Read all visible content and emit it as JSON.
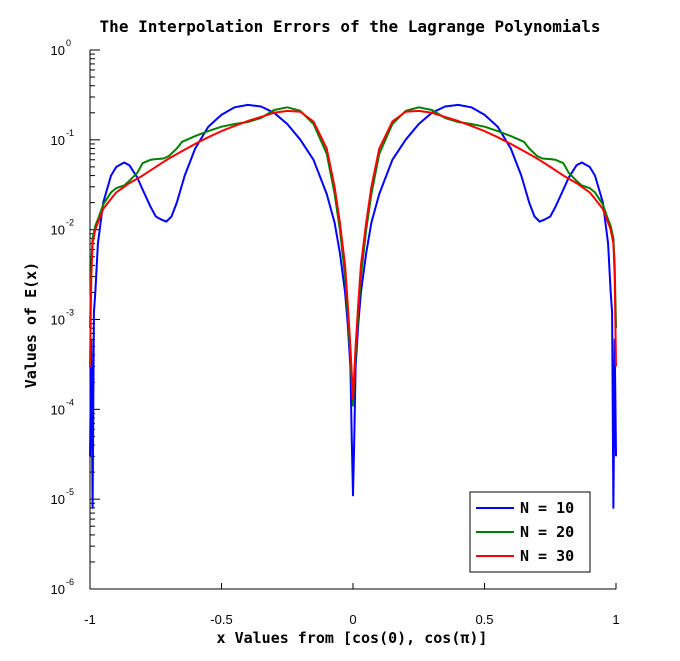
{
  "chart_data": {
    "type": "line",
    "title": "The Interpolation Errors of the Lagrange Polynomials",
    "xlabel": "x Values from [cos(0), cos(π)]",
    "ylabel": "Values of E(x)",
    "xlim": [
      -1,
      1
    ],
    "ylim": [
      1e-06,
      1
    ],
    "yscale": "log",
    "grid": false,
    "legend_position": "bottom-right",
    "x_ticks": [
      "-1",
      "-0.5",
      "0",
      "0.5",
      "1"
    ],
    "x_tick_values": [
      -1,
      -0.5,
      0,
      0.5,
      1
    ],
    "y_ticks": [
      {
        "base": "10",
        "exp": "0",
        "value": 1
      },
      {
        "base": "10",
        "exp": "-1",
        "value": 0.1
      },
      {
        "base": "10",
        "exp": "-2",
        "value": 0.01
      },
      {
        "base": "10",
        "exp": "-3",
        "value": 0.001
      },
      {
        "base": "10",
        "exp": "-4",
        "value": 0.0001
      },
      {
        "base": "10",
        "exp": "-5",
        "value": 1e-05
      },
      {
        "base": "10",
        "exp": "-6",
        "value": 1e-06
      }
    ],
    "series": [
      {
        "name": "N = 10",
        "color": "#0000ff",
        "x": [
          -1.0,
          -0.995,
          -0.99,
          -0.985,
          -0.98,
          -0.97,
          -0.95,
          -0.92,
          -0.9,
          -0.87,
          -0.85,
          -0.82,
          -0.8,
          -0.77,
          -0.75,
          -0.73,
          -0.71,
          -0.69,
          -0.67,
          -0.64,
          -0.6,
          -0.55,
          -0.5,
          -0.45,
          -0.4,
          -0.35,
          -0.3,
          -0.25,
          -0.2,
          -0.15,
          -0.1,
          -0.07,
          -0.05,
          -0.03,
          -0.02,
          -0.01,
          -0.005,
          0.0,
          0.005,
          0.01,
          0.02,
          0.03,
          0.05,
          0.07,
          0.1,
          0.15,
          0.2,
          0.25,
          0.3,
          0.35,
          0.4,
          0.45,
          0.5,
          0.55,
          0.6,
          0.64,
          0.67,
          0.69,
          0.71,
          0.73,
          0.75,
          0.77,
          0.8,
          0.82,
          0.85,
          0.87,
          0.9,
          0.92,
          0.95,
          0.97,
          0.98,
          0.985,
          0.99,
          0.995,
          1.0
        ],
        "y": [
          3e-05,
          0.0006,
          8e-06,
          0.0012,
          0.002,
          0.007,
          0.02,
          0.04,
          0.05,
          0.056,
          0.052,
          0.038,
          0.028,
          0.018,
          0.014,
          0.013,
          0.0123,
          0.014,
          0.02,
          0.04,
          0.08,
          0.14,
          0.19,
          0.23,
          0.245,
          0.235,
          0.2,
          0.15,
          0.1,
          0.06,
          0.025,
          0.012,
          0.0055,
          0.002,
          0.0009,
          0.0003,
          5e-05,
          1.1e-05,
          5e-05,
          0.0003,
          0.0009,
          0.002,
          0.0055,
          0.012,
          0.025,
          0.06,
          0.1,
          0.15,
          0.2,
          0.235,
          0.245,
          0.23,
          0.19,
          0.14,
          0.08,
          0.04,
          0.02,
          0.014,
          0.0123,
          0.013,
          0.014,
          0.018,
          0.028,
          0.038,
          0.052,
          0.056,
          0.05,
          0.04,
          0.02,
          0.007,
          0.002,
          0.0012,
          8e-06,
          0.0006,
          3e-05
        ]
      },
      {
        "name": "N = 20",
        "color": "#008000",
        "x": [
          -1.0,
          -0.995,
          -0.99,
          -0.98,
          -0.97,
          -0.95,
          -0.92,
          -0.9,
          -0.87,
          -0.85,
          -0.82,
          -0.8,
          -0.77,
          -0.75,
          -0.72,
          -0.7,
          -0.67,
          -0.65,
          -0.6,
          -0.55,
          -0.5,
          -0.45,
          -0.4,
          -0.35,
          -0.3,
          -0.25,
          -0.2,
          -0.15,
          -0.1,
          -0.07,
          -0.05,
          -0.03,
          -0.02,
          -0.01,
          0.0,
          0.01,
          0.02,
          0.03,
          0.05,
          0.07,
          0.1,
          0.15,
          0.2,
          0.25,
          0.3,
          0.35,
          0.4,
          0.45,
          0.5,
          0.55,
          0.6,
          0.65,
          0.67,
          0.7,
          0.72,
          0.75,
          0.77,
          0.8,
          0.82,
          0.85,
          0.87,
          0.9,
          0.92,
          0.95,
          0.97,
          0.98,
          0.99,
          0.995,
          1.0
        ],
        "y": [
          0.0008,
          0.004,
          0.008,
          0.011,
          0.013,
          0.019,
          0.026,
          0.029,
          0.031,
          0.035,
          0.043,
          0.055,
          0.06,
          0.061,
          0.062,
          0.066,
          0.08,
          0.095,
          0.11,
          0.125,
          0.14,
          0.15,
          0.158,
          0.175,
          0.215,
          0.23,
          0.21,
          0.15,
          0.07,
          0.025,
          0.01,
          0.003,
          0.0012,
          0.0004,
          0.00011,
          0.0004,
          0.0012,
          0.003,
          0.01,
          0.025,
          0.07,
          0.15,
          0.21,
          0.23,
          0.215,
          0.175,
          0.158,
          0.15,
          0.14,
          0.125,
          0.11,
          0.095,
          0.08,
          0.066,
          0.062,
          0.061,
          0.06,
          0.055,
          0.043,
          0.035,
          0.031,
          0.029,
          0.026,
          0.019,
          0.013,
          0.011,
          0.008,
          0.004,
          0.0008
        ]
      },
      {
        "name": "N = 30",
        "color": "#ff0000",
        "x": [
          -1.0,
          -0.995,
          -0.99,
          -0.98,
          -0.97,
          -0.95,
          -0.92,
          -0.9,
          -0.85,
          -0.8,
          -0.75,
          -0.7,
          -0.65,
          -0.6,
          -0.55,
          -0.5,
          -0.45,
          -0.4,
          -0.35,
          -0.3,
          -0.25,
          -0.2,
          -0.15,
          -0.1,
          -0.07,
          -0.05,
          -0.03,
          -0.02,
          -0.01,
          0.0,
          0.01,
          0.02,
          0.03,
          0.05,
          0.07,
          0.1,
          0.15,
          0.2,
          0.25,
          0.3,
          0.35,
          0.4,
          0.45,
          0.5,
          0.55,
          0.6,
          0.65,
          0.7,
          0.75,
          0.8,
          0.85,
          0.9,
          0.92,
          0.95,
          0.97,
          0.98,
          0.99,
          0.995,
          1.0
        ],
        "y": [
          0.0003,
          0.003,
          0.007,
          0.01,
          0.012,
          0.017,
          0.022,
          0.026,
          0.033,
          0.04,
          0.05,
          0.062,
          0.075,
          0.09,
          0.107,
          0.125,
          0.143,
          0.162,
          0.18,
          0.2,
          0.21,
          0.205,
          0.16,
          0.08,
          0.03,
          0.012,
          0.004,
          0.0015,
          0.0005,
          0.00013,
          0.0005,
          0.0015,
          0.004,
          0.012,
          0.03,
          0.08,
          0.16,
          0.205,
          0.21,
          0.2,
          0.18,
          0.162,
          0.143,
          0.125,
          0.107,
          0.09,
          0.075,
          0.062,
          0.05,
          0.04,
          0.033,
          0.026,
          0.022,
          0.017,
          0.012,
          0.01,
          0.007,
          0.003,
          0.0003
        ]
      }
    ]
  }
}
